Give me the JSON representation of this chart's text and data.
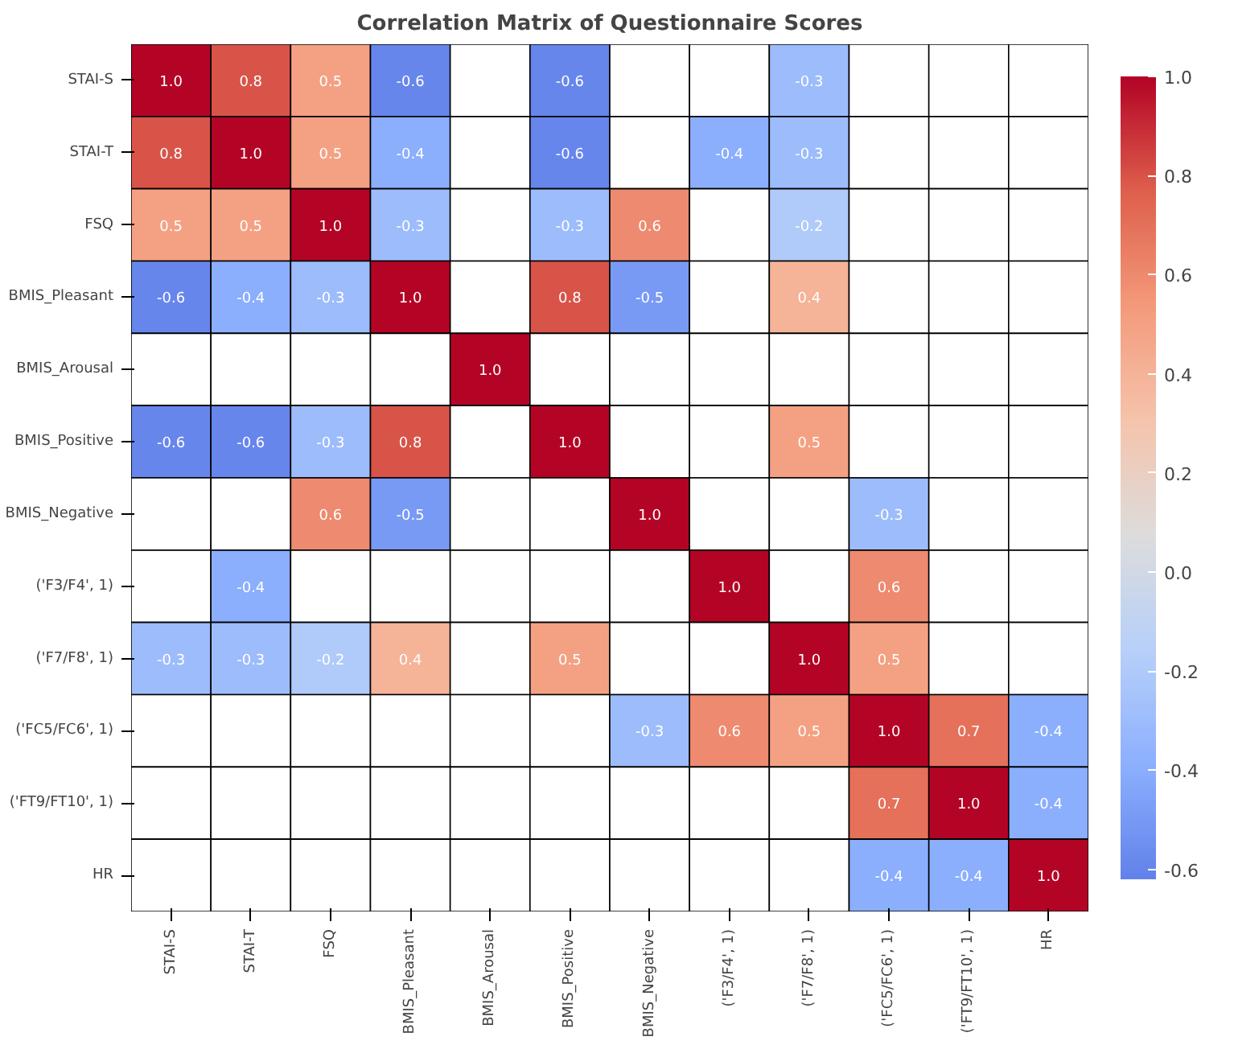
{
  "chart_data": {
    "type": "heatmap",
    "title": "Correlation Matrix of Questionnaire Scores",
    "categories": [
      "STAI-S",
      "STAI-T",
      "FSQ",
      "BMIS_Pleasant",
      "BMIS_Arousal",
      "BMIS_Positive",
      "BMIS_Negative",
      "('F3/F4', 1)",
      "('F7/F8', 1)",
      "('FC5/FC6', 1)",
      "('FT9/FT10', 1)",
      "HR"
    ],
    "y_categories": [
      "STAI-S",
      "STAI-T",
      "FSQ",
      "BMIS_Pleasant",
      "BMIS_Arousal",
      "BMIS_Positive",
      "BMIS_Negative",
      "('F3/F4', 1)",
      "('F7/F8', 1)",
      "('FC5/FC6', 1)",
      "('FT9/FT10', 1)",
      "HR"
    ],
    "cells": [
      [
        1.0,
        0.8,
        0.5,
        -0.6,
        null,
        -0.6,
        null,
        null,
        -0.3,
        null,
        null,
        null
      ],
      [
        0.8,
        1.0,
        0.5,
        -0.4,
        null,
        -0.6,
        null,
        -0.4,
        -0.3,
        null,
        null,
        null
      ],
      [
        0.5,
        0.5,
        1.0,
        -0.3,
        null,
        -0.3,
        0.6,
        null,
        -0.2,
        null,
        null,
        null
      ],
      [
        -0.6,
        -0.4,
        -0.3,
        1.0,
        null,
        0.8,
        -0.5,
        null,
        0.4,
        null,
        null,
        null
      ],
      [
        null,
        null,
        null,
        null,
        1.0,
        null,
        null,
        null,
        null,
        null,
        null,
        null
      ],
      [
        -0.6,
        -0.6,
        -0.3,
        0.8,
        null,
        1.0,
        null,
        null,
        0.5,
        null,
        null,
        null
      ],
      [
        null,
        null,
        0.6,
        -0.5,
        null,
        null,
        1.0,
        null,
        null,
        -0.3,
        null,
        null
      ],
      [
        null,
        -0.4,
        null,
        null,
        null,
        null,
        null,
        1.0,
        null,
        0.6,
        null,
        null
      ],
      [
        -0.3,
        -0.3,
        -0.2,
        0.4,
        null,
        0.5,
        null,
        null,
        1.0,
        0.5,
        null,
        null
      ],
      [
        null,
        null,
        null,
        null,
        null,
        null,
        -0.3,
        0.6,
        0.5,
        1.0,
        0.7,
        -0.4
      ],
      [
        null,
        null,
        null,
        null,
        null,
        null,
        null,
        null,
        null,
        0.7,
        1.0,
        -0.4
      ],
      [
        null,
        null,
        null,
        null,
        null,
        null,
        null,
        null,
        null,
        -0.4,
        -0.4,
        1.0
      ]
    ],
    "cell_labels": [
      [
        "1.0",
        "0.8",
        "0.5",
        "-0.6",
        null,
        "-0.6",
        null,
        null,
        "-0.3",
        null,
        null,
        null
      ],
      [
        "0.8",
        "1.0",
        "0.5",
        "-0.4",
        null,
        "-0.6",
        null,
        "-0.4",
        "-0.3",
        null,
        null,
        null
      ],
      [
        "0.5",
        "0.5",
        "1.0",
        "-0.3",
        null,
        "-0.3",
        "0.6",
        null,
        "-0.2",
        null,
        null,
        null
      ],
      [
        "-0.6",
        "-0.4",
        "-0.3",
        "1.0",
        null,
        "0.8",
        "-0.5",
        null,
        "0.4",
        null,
        null,
        null
      ],
      [
        null,
        null,
        null,
        null,
        "1.0",
        null,
        null,
        null,
        null,
        null,
        null,
        null
      ],
      [
        "-0.6",
        "-0.6",
        "-0.3",
        "0.8",
        null,
        "1.0",
        null,
        null,
        "0.5",
        null,
        null,
        null
      ],
      [
        null,
        null,
        "0.6",
        "-0.5",
        null,
        null,
        "1.0",
        null,
        null,
        "-0.3",
        null,
        null
      ],
      [
        null,
        "-0.4",
        null,
        null,
        null,
        null,
        null,
        "1.0",
        null,
        "0.6",
        null,
        null
      ],
      [
        "-0.3",
        "-0.3",
        "-0.2",
        "0.4",
        null,
        "0.5",
        null,
        null,
        "1.0",
        "0.5",
        null,
        null
      ],
      [
        null,
        null,
        null,
        null,
        null,
        null,
        "-0.3",
        "0.6",
        "0.5",
        "1.0",
        "0.7",
        "-0.4"
      ],
      [
        null,
        null,
        null,
        null,
        null,
        null,
        null,
        null,
        null,
        "0.7",
        "1.0",
        "-0.4"
      ],
      [
        null,
        null,
        null,
        null,
        null,
        null,
        null,
        null,
        null,
        "-0.4",
        "-0.4",
        "1.0"
      ]
    ],
    "clim": [
      -0.62,
      1.0
    ],
    "cticks": [
      -0.6,
      -0.4,
      -0.2,
      {
        "value": 0,
        "label": "0.0"
      },
      0.2,
      0.4,
      0.6,
      0.8,
      {
        "value": 1,
        "label": "1.0"
      }
    ],
    "data_labels": true
  }
}
